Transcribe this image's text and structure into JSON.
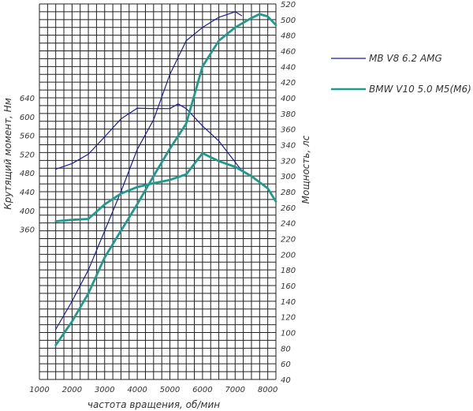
{
  "chart_data": {
    "type": "line",
    "xlabel": "частота вращения, об/мин",
    "ylabel_left": "Крутящий момент, Нм",
    "ylabel_right": "Мощность, лс",
    "x_ticks": [
      1000,
      2000,
      3000,
      4000,
      5000,
      6000,
      7000,
      8000
    ],
    "x_range": [
      1000,
      8250
    ],
    "y_left_ticks": [
      360,
      400,
      440,
      480,
      520,
      560,
      600,
      640
    ],
    "y_left_range": [
      40,
      840
    ],
    "y_right_ticks": [
      40,
      60,
      80,
      100,
      120,
      140,
      160,
      180,
      200,
      220,
      240,
      260,
      280,
      300,
      320,
      340,
      360,
      380,
      400,
      420,
      440,
      460,
      480,
      500,
      520
    ],
    "y_right_range": [
      40,
      520
    ],
    "grid": true,
    "legend_position": "right",
    "legend": [
      {
        "label": "MB V8 6.2 AMG",
        "color": "#1a1aa0"
      },
      {
        "label": "BMW V10 5.0 M5(M6)",
        "color": "#1f9a8c"
      }
    ],
    "series": [
      {
        "name": "MB V8 6.2 AMG",
        "quantity": "power",
        "axis": "right",
        "color": "#1a1aa0",
        "x": [
          1500,
          2000,
          2500,
          3000,
          3500,
          4000,
          4500,
          5000,
          5500,
          6000,
          6500,
          7000,
          7200
        ],
        "y": [
          104,
          140,
          180,
          230,
          280,
          334,
          372,
          430,
          473,
          490,
          503,
          510,
          505
        ]
      },
      {
        "name": "MB V8 6.2 AMG",
        "quantity": "torque",
        "axis": "left",
        "color": "#1a1aa0",
        "x": [
          1500,
          2000,
          2500,
          3000,
          3500,
          4000,
          4500,
          5000,
          5250,
          5500,
          6000,
          6500,
          7000,
          7200
        ],
        "y": [
          488,
          500,
          520,
          557,
          595,
          618,
          617,
          617,
          627,
          617,
          580,
          548,
          503,
          485
        ]
      },
      {
        "name": "BMW V10 5.0 M5(M6)",
        "quantity": "power",
        "axis": "right",
        "color": "#1f9a8c",
        "x": [
          1500,
          2000,
          2500,
          3000,
          3500,
          4000,
          4500,
          5000,
          5500,
          6000,
          6500,
          7000,
          7500,
          7750,
          8000,
          8250
        ],
        "y": [
          84,
          114,
          150,
          196,
          230,
          264,
          300,
          335,
          367,
          440,
          473,
          490,
          502,
          507,
          504,
          493
        ]
      },
      {
        "name": "BMW V10 5.0 M5(M6)",
        "quantity": "torque",
        "axis": "left",
        "color": "#1f9a8c",
        "x": [
          1500,
          2000,
          2500,
          3000,
          3500,
          4000,
          4500,
          5000,
          5500,
          6000,
          6500,
          7000,
          7500,
          8000,
          8250
        ],
        "y": [
          377,
          380,
          382,
          413,
          436,
          450,
          458,
          465,
          477,
          522,
          505,
          493,
          473,
          447,
          419
        ]
      }
    ]
  }
}
